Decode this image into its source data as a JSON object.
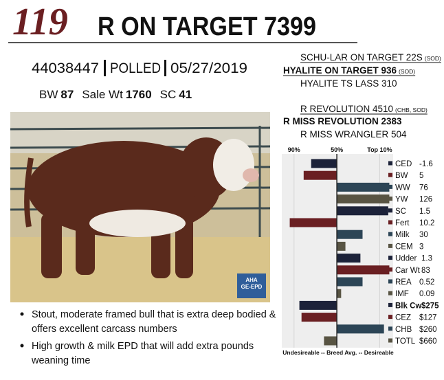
{
  "lot": "119",
  "name": "R ON TARGET 7399",
  "registration": "44038447",
  "status": "POLLED",
  "birth_date": "05/27/2019",
  "stats": [
    {
      "label": "BW",
      "value": 87
    },
    {
      "label": "Sale Wt",
      "value": 1760
    },
    {
      "label": "SC",
      "value": 41
    }
  ],
  "pedigree": [
    {
      "name": "SCHU-LAR ON TARGET 22S",
      "note": "(SOD)",
      "bold": false,
      "underline": true
    },
    {
      "name": "HYALITE ON TARGET 936",
      "note": "(SOD)",
      "bold": true,
      "underline": true
    },
    {
      "name": "HYALITE TS LASS 310",
      "note": null,
      "bold": false,
      "underline": false
    },
    {
      "name": "R REVOLUTION 4510",
      "note": "(CHB, SOD)",
      "bold": false,
      "underline": true
    },
    {
      "name": "R MISS REVOLUTION 2383",
      "note": null,
      "bold": true,
      "underline": false
    },
    {
      "name": "R MISS WRANGLER 504",
      "note": null,
      "bold": false,
      "underline": false
    }
  ],
  "badge": [
    "AHA",
    "GE-EPD"
  ],
  "bullets": [
    [
      "Stout, moderate framed bull that is extra deep bodied &",
      "offers excellent carcass numbers"
    ],
    [
      "High growth & milk EPD that will add extra pounds",
      "weaning time"
    ]
  ],
  "epd_chart": {
    "type": "bar",
    "xlim": [
      95,
      0
    ],
    "xticks": [
      {
        "value": 90,
        "label": "90%"
      },
      {
        "value": 50,
        "label": "50%"
      },
      {
        "value": 10,
        "label": "Top 10%"
      }
    ],
    "baseline": 50,
    "footer": "Undesireable -- Breed Avg. -- Desireable",
    "traits": [
      {
        "name": "CED",
        "epd": "-1.6",
        "rank": 74,
        "color": "#1c2239",
        "bold": false
      },
      {
        "name": "BW",
        "epd": "5",
        "rank": 81,
        "color": "#6a1f22",
        "bold": false
      },
      {
        "name": "WW",
        "epd": "76",
        "rank": 1,
        "color": "#2c4556",
        "bold": false
      },
      {
        "name": "YW",
        "epd": "126",
        "rank": 1,
        "color": "#585443",
        "bold": false
      },
      {
        "name": "SC",
        "epd": "1.5",
        "rank": 2,
        "color": "#1c2239",
        "bold": false
      },
      {
        "name": "Fert",
        "epd": "10.2",
        "rank": 94,
        "color": "#6a1f22",
        "bold": false
      },
      {
        "name": "Milk",
        "epd": "30",
        "rank": 26,
        "color": "#2c4556",
        "bold": false
      },
      {
        "name": "CEM",
        "epd": "3",
        "rank": 42,
        "color": "#585443",
        "bold": false
      },
      {
        "name": "Udder",
        "epd": "1.3",
        "rank": 28,
        "color": "#1c2239",
        "bold": false
      },
      {
        "name": "Car Wt",
        "epd": "83",
        "rank": 1,
        "color": "#6a1f22",
        "bold": false
      },
      {
        "name": "REA",
        "epd": "0.52",
        "rank": 26,
        "color": "#2c4556",
        "bold": false
      },
      {
        "name": "IMF",
        "epd": "0.09",
        "rank": 46,
        "color": "#585443",
        "bold": false
      },
      {
        "name": "Blk Cw",
        "epd": "$275",
        "rank": 85,
        "color": "#1c2239",
        "bold": true
      },
      {
        "name": "CEZ",
        "epd": "$127",
        "rank": 83,
        "color": "#6a1f22",
        "bold": false
      },
      {
        "name": "CHB",
        "epd": "$260",
        "rank": 6,
        "color": "#2c4556",
        "bold": false
      },
      {
        "name": "TOTL",
        "epd": "$660",
        "rank": 62,
        "color": "#585443",
        "bold": false
      }
    ]
  }
}
